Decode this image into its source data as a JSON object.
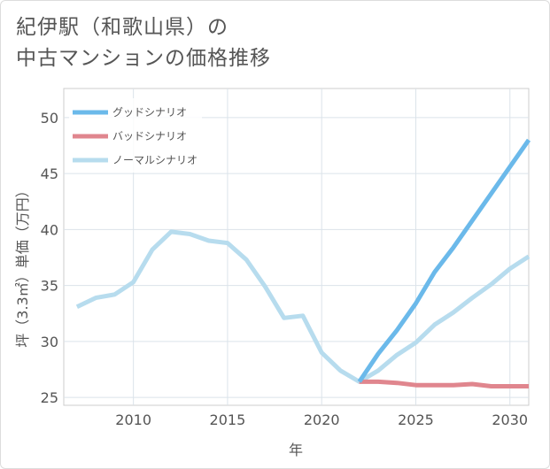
{
  "title": {
    "line1": "紀伊駅（和歌山県）の",
    "line2": "中古マンションの価格推移"
  },
  "chart_data": {
    "type": "line",
    "xlabel": "年",
    "ylabel": "坪（3.3㎡）単価（万円）",
    "xlim": [
      2006.3,
      2031
    ],
    "ylim": [
      24.3,
      52.6
    ],
    "xticks": [
      2010,
      2015,
      2020,
      2025,
      2030
    ],
    "yticks": [
      25,
      30,
      35,
      40,
      45,
      50
    ],
    "grid": true,
    "legend_position": "top-left",
    "series": [
      {
        "name": "グッドシナリオ",
        "color": "#6bb9ea",
        "width": 5,
        "x": [
          2022,
          2023,
          2024,
          2025,
          2026,
          2027,
          2028,
          2029,
          2030,
          2031
        ],
        "y": [
          26.4,
          28.9,
          31.0,
          33.4,
          36.2,
          38.4,
          40.8,
          43.2,
          45.6,
          48.0
        ]
      },
      {
        "name": "バッドシナリオ",
        "color": "#e0868e",
        "width": 5,
        "x": [
          2022,
          2023,
          2024,
          2025,
          2026,
          2027,
          2028,
          2029,
          2030,
          2031
        ],
        "y": [
          26.4,
          26.4,
          26.3,
          26.1,
          26.1,
          26.1,
          26.2,
          26.0,
          26.0,
          26.0
        ]
      },
      {
        "name": "ノーマルシナリオ",
        "color": "#b7dcee",
        "width": 5,
        "x": [
          2007,
          2008,
          2009,
          2010,
          2011,
          2012,
          2013,
          2014,
          2015,
          2016,
          2017,
          2018,
          2019,
          2020,
          2021,
          2022,
          2023,
          2024,
          2025,
          2026,
          2027,
          2028,
          2029,
          2030,
          2031
        ],
        "y": [
          33.1,
          33.9,
          34.2,
          35.3,
          38.2,
          39.8,
          39.6,
          39.0,
          38.8,
          37.3,
          34.9,
          32.1,
          32.3,
          29.0,
          27.4,
          26.4,
          27.4,
          28.8,
          29.9,
          31.5,
          32.6,
          33.9,
          35.1,
          36.5,
          37.6
        ]
      }
    ]
  }
}
